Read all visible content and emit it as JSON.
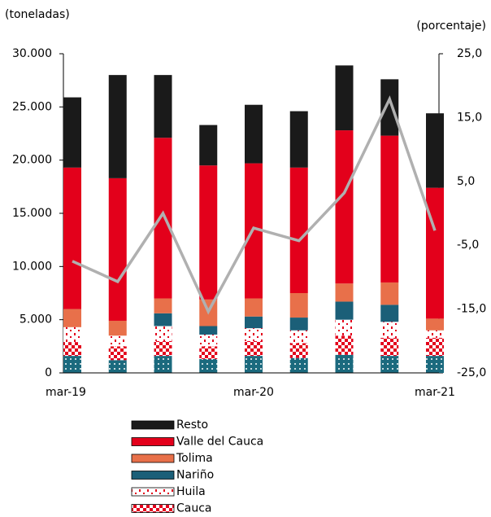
{
  "chart_data": {
    "type": "bar",
    "stacked": true,
    "y_label": "(toneladas)",
    "y2_label": "(porcentaje)",
    "categories": [
      "mar-19",
      null,
      null,
      null,
      "mar-20",
      null,
      null,
      null,
      "mar-21"
    ],
    "ylim": [
      0,
      30000
    ],
    "yticks": [
      0,
      {
        "value": 5000,
        "label": "5.000"
      },
      {
        "value": 10000,
        "label": "10.000"
      },
      {
        "value": 15000,
        "label": "15.000"
      },
      {
        "value": 20000,
        "label": "20.000"
      },
      {
        "value": 25000,
        "label": "25.000"
      },
      {
        "value": 30000,
        "label": "30.000"
      }
    ],
    "y2lim": [
      -25,
      25
    ],
    "y2ticks": [
      {
        "value": -25,
        "label": "-25,0"
      },
      {
        "value": -15,
        "label": "-15,0"
      },
      {
        "value": -5,
        "label": "-5,0"
      },
      {
        "value": 5,
        "label": "5,0"
      },
      {
        "value": 15,
        "label": "15,0"
      },
      {
        "value": 25,
        "label": "25,0"
      }
    ],
    "series": [
      {
        "color": "#1b6a7e",
        "pattern": "dots",
        "values": [
          1600,
          1200,
          1600,
          1300,
          1600,
          1400,
          1700,
          1600,
          1600
        ]
      },
      {
        "name": "Cauca",
        "color": "#e3001b",
        "pattern": "checker",
        "values": [
          1300,
          1300,
          1400,
          1200,
          1400,
          1400,
          1800,
          1700,
          1700
        ]
      },
      {
        "name": "Huila",
        "color": "#e3001b",
        "pattern": "dashes",
        "values": [
          1400,
          1000,
          1400,
          1100,
          1200,
          1200,
          1500,
          1500,
          700
        ]
      },
      {
        "name": "Nariño",
        "color": "#1b5f78",
        "values": [
          0,
          0,
          1200,
          800,
          1100,
          1200,
          1700,
          1600,
          0
        ]
      },
      {
        "name": "Tolima",
        "color": "#e8704a",
        "values": [
          1700,
          1400,
          1400,
          2500,
          1700,
          2300,
          1700,
          2100,
          1100
        ]
      },
      {
        "name": "Valle del Cauca",
        "color": "#e3001b",
        "values": [
          13300,
          13400,
          15100,
          12600,
          12700,
          11800,
          14400,
          13800,
          12300
        ]
      },
      {
        "name": "Resto",
        "color": "#1a1a1a",
        "values": [
          6600,
          9700,
          5900,
          3800,
          5500,
          5300,
          6100,
          5300,
          7000
        ]
      },
      {
        "type": "line",
        "axis": "y2",
        "color": "#b0b0b0",
        "values": [
          -7.5,
          -10.7,
          0.0,
          -15.4,
          -2.3,
          -4.3,
          3.2,
          17.9,
          -2.7
        ]
      }
    ]
  }
}
